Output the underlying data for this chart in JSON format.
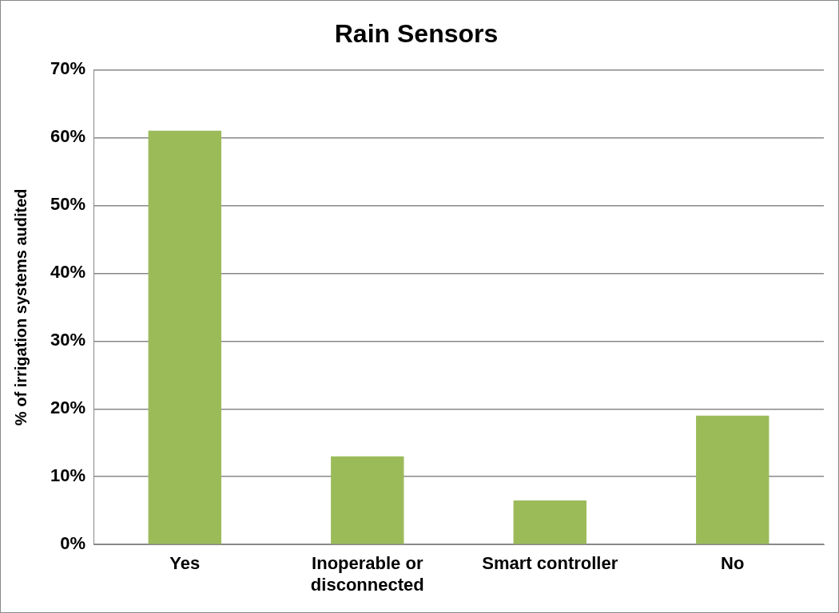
{
  "chart_data": {
    "type": "bar",
    "title": "Rain Sensors",
    "ylabel": "% of irrigation systems audited",
    "categories": [
      "Yes",
      "Inoperable or disconnected",
      "Smart controller",
      "No"
    ],
    "values": [
      61,
      13,
      6.5,
      19
    ],
    "color": "#9bbb59",
    "ylim": [
      0,
      70
    ],
    "yticks": [
      {
        "value": 0,
        "label": "0%"
      },
      {
        "value": 10,
        "label": "10%"
      },
      {
        "value": 20,
        "label": "20%"
      },
      {
        "value": 30,
        "label": "30%"
      },
      {
        "value": 40,
        "label": "40%"
      },
      {
        "value": 50,
        "label": "50%"
      },
      {
        "value": 60,
        "label": "60%"
      },
      {
        "value": 70,
        "label": "70%"
      }
    ],
    "grid": "y",
    "legend": false
  }
}
